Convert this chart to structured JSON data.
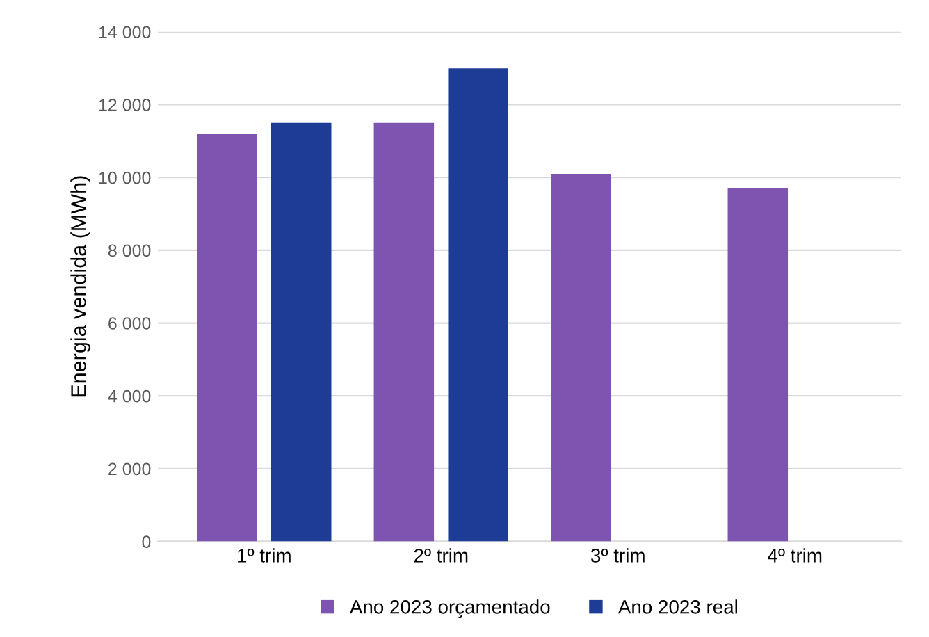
{
  "chart_data": {
    "type": "bar",
    "ylabel": "Energia vendida (MWh)",
    "categories": [
      "1º trim",
      "2º trim",
      "3º trim",
      "4º trim"
    ],
    "series": [
      {
        "name": "Ano 2023 orçamentado",
        "color": "#7d55b0",
        "values": [
          11200,
          11500,
          10100,
          9700
        ]
      },
      {
        "name": "Ano 2023 real",
        "color": "#1c3c96",
        "values": [
          11500,
          13000,
          null,
          null
        ]
      }
    ],
    "ylim": [
      0,
      14000
    ],
    "yticks": [
      0,
      {
        "value": 2000,
        "label": "2 000"
      },
      {
        "value": 4000,
        "label": "4 000"
      },
      {
        "value": 6000,
        "label": "6 000"
      },
      {
        "value": 8000,
        "label": "8 000"
      },
      {
        "value": 10000,
        "label": "10 000"
      },
      {
        "value": 12000,
        "label": "12 000"
      },
      {
        "value": 14000,
        "label": "14 000"
      }
    ],
    "grid": "y",
    "legend": "bottom"
  }
}
